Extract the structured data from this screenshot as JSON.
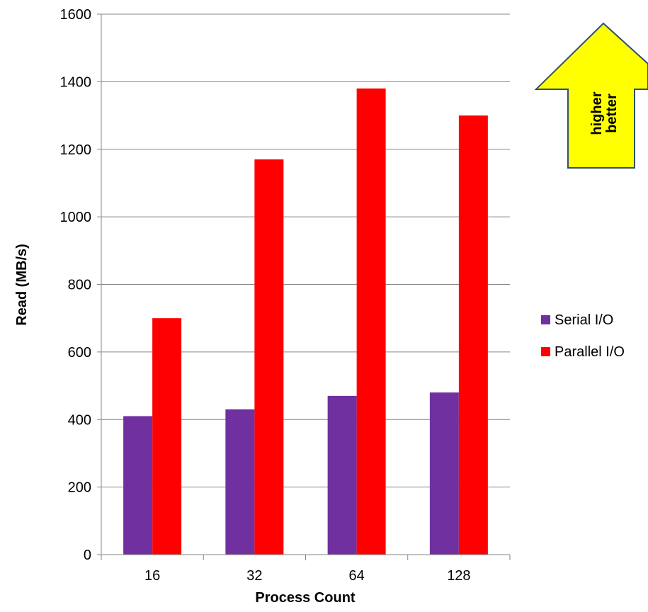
{
  "chart_data": {
    "type": "bar",
    "title": "",
    "xlabel": "Process Count",
    "ylabel": "Read (MB/s)",
    "categories": [
      "16",
      "32",
      "64",
      "128"
    ],
    "series": [
      {
        "name": "Serial I/O",
        "color": "#7030A0",
        "values": [
          410,
          430,
          470,
          480
        ]
      },
      {
        "name": "Parallel I/O",
        "color": "#FF0000",
        "values": [
          700,
          1170,
          1380,
          1300
        ]
      }
    ],
    "ylim": [
      0,
      1600
    ],
    "yticks": [
      0,
      200,
      400,
      600,
      800,
      1000,
      1200,
      1400,
      1600
    ],
    "grid": true,
    "legend_position": "right",
    "annotations": {
      "arrow_line1": "higher",
      "arrow_line2": "better",
      "arrow_fill": "#FFFF00",
      "arrow_stroke": "#2F4F6F"
    }
  }
}
